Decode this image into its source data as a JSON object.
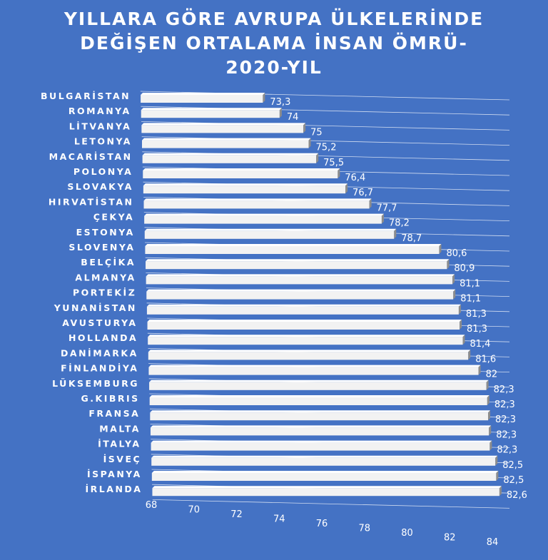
{
  "title_lines": [
    "YILLARA GÖRE AVRUPA ÜLKELERİNDE",
    "DEĞİŞEN ORTALAMA İNSAN ÖMRÜ-",
    "2020-YIL"
  ],
  "colors": {
    "background": "#4472c4",
    "bar_face": "#f2f2f2",
    "bar_top": "#ffffff",
    "bar_side": "#8c8c8c",
    "text": "#ffffff",
    "grid": "#ffffff"
  },
  "chart_data": {
    "type": "bar",
    "orientation": "horizontal",
    "title": "YILLARA GÖRE AVRUPA ÜLKELERİNDE DEĞİŞEN ORTALAMA İNSAN ÖMRÜ-2020-YIL",
    "xlabel": "",
    "ylabel": "",
    "xlim": [
      68,
      84
    ],
    "x_ticks": [
      68,
      70,
      72,
      74,
      76,
      78,
      80,
      82,
      84
    ],
    "grid": true,
    "legend": "none",
    "style": "3d-perspective",
    "categories": [
      "BULGARİSTAN",
      "ROMANYA",
      "LİTVANYA",
      "LETONYA",
      "MACARİSTAN",
      "POLONYA",
      "SLOVAKYA",
      "HIRVATİSTAN",
      "ÇEKYA",
      "ESTONYA",
      "SLOVENYA",
      "BELÇİKA",
      "ALMANYA",
      "PORTEKİZ",
      "YUNANİSTAN",
      "AVUSTURYA",
      "HOLLANDA",
      "DANİMARKA",
      "FİNLANDİYA",
      "LÜKSEMBURG",
      "G.KIBRIS",
      "FRANSA",
      "MALTA",
      "İTALYA",
      "İSVEÇ",
      "İSPANYA",
      "İRLANDA"
    ],
    "values": [
      73.3,
      74,
      75,
      75.2,
      75.5,
      76.4,
      76.7,
      77.7,
      78.2,
      78.7,
      80.6,
      80.9,
      81.1,
      81.1,
      81.3,
      81.3,
      81.4,
      81.6,
      82,
      82.3,
      82.3,
      82.3,
      82.3,
      82.3,
      82.5,
      82.5,
      82.6
    ],
    "value_labels": [
      "73,3",
      "74",
      "75",
      "75,2",
      "75,5",
      "76,4",
      "76,7",
      "77,7",
      "78,2",
      "78,7",
      "80,6",
      "80,9",
      "81,1",
      "81,1",
      "81,3",
      "81,3",
      "81,4",
      "81,6",
      "82",
      "82,3",
      "82,3",
      "82,3",
      "82,3",
      "82,3",
      "82,5",
      "82,5",
      "82,6"
    ]
  }
}
